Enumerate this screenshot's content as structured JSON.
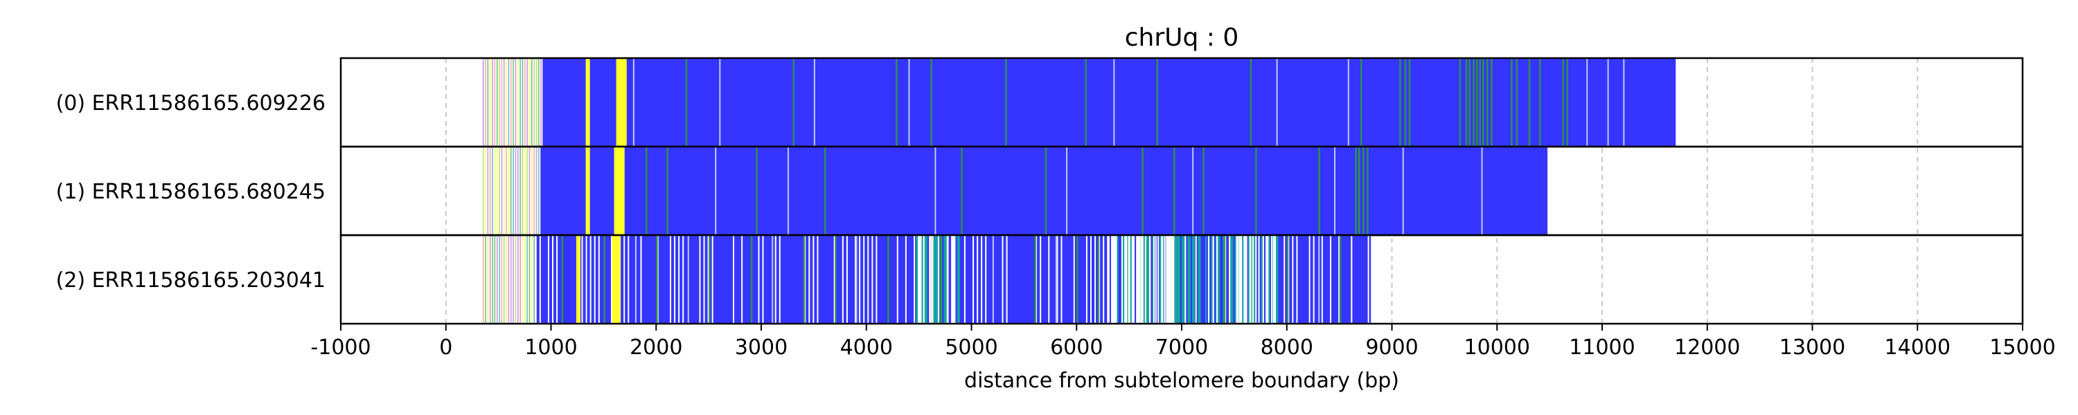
{
  "chart_data": {
    "type": "track",
    "title": "chrUq : 0",
    "xlabel": "distance from subtelomere boundary (bp)",
    "xlim": [
      -1000,
      15000
    ],
    "xticks": [
      -1000,
      0,
      1000,
      2000,
      3000,
      4000,
      5000,
      6000,
      7000,
      8000,
      9000,
      10000,
      11000,
      12000,
      13000,
      14000,
      15000
    ],
    "grid": "vertical-dashed",
    "colors": {
      "blue": "#3535ff",
      "yellow": "#ffff2b",
      "green": "#2ca02c",
      "teal": "#17a2a2",
      "purple": "#b45fd6",
      "grid": "#c8c8c8"
    },
    "reads": [
      {
        "label": "(0) ERR11586165.609226",
        "start": 350,
        "end": 11700,
        "solid_start": 920,
        "yellow": [
          [
            1330,
            1370
          ],
          [
            1620,
            1720
          ]
        ],
        "green_lines": [
          2280,
          3300,
          4280,
          4610,
          5320,
          6080,
          6760,
          7650,
          8700,
          9070,
          9120,
          9160,
          9640,
          9700,
          9730,
          9770,
          9800,
          9830,
          9860,
          9900,
          9940,
          10130,
          10180,
          10300,
          10400,
          10620,
          10660
        ],
        "light_lines": [
          1780,
          2600,
          3500,
          4400,
          6350,
          7900,
          8580,
          10850,
          11050,
          11200
        ]
      },
      {
        "label": "(1) ERR11586165.680245",
        "start": 350,
        "end": 10480,
        "solid_start": 900,
        "yellow": [
          [
            1330,
            1370
          ],
          [
            1600,
            1700
          ]
        ],
        "green_lines": [
          1900,
          2100,
          2950,
          3600,
          4900,
          5700,
          6620,
          6920,
          7200,
          7700,
          8300,
          8650,
          8680,
          8720,
          8760
        ],
        "light_lines": [
          2560,
          3250,
          4650,
          5900,
          7100,
          8450,
          9100,
          9850
        ]
      },
      {
        "label": "(2) ERR11586165.203041",
        "start": 350,
        "end": 8800,
        "solid_start": 850,
        "yellow": [
          [
            1240,
            1280
          ],
          [
            1580,
            1660
          ]
        ],
        "teal_band": [
          4400,
          4900
        ],
        "teal_band2": [
          6300,
          7900
        ],
        "green_lines": [
          1100,
          1500,
          2000,
          2500,
          2900,
          3400,
          3700,
          4200,
          4700,
          5600,
          6000,
          6200,
          7400,
          8000,
          8500
        ],
        "light_lines": [
          1800,
          2300,
          3100,
          3900,
          5200,
          5800,
          8300
        ]
      }
    ]
  }
}
